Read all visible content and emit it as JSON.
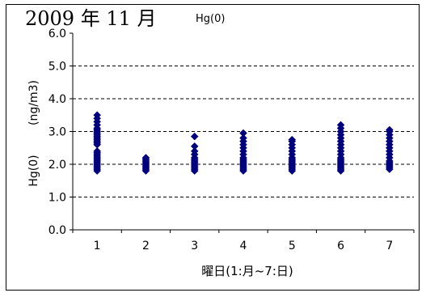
{
  "page": {
    "title": "2009 年 11 月"
  },
  "chart_data": {
    "type": "scatter",
    "series_label": "Hg(0)",
    "ylabel_main": "Hg(0)",
    "ylabel_unit": "(ng/m3)",
    "xlabel": "曜日(1:月~7:日)",
    "xlim": [
      0.5,
      7.5
    ],
    "ylim": [
      0.0,
      6.0
    ],
    "y_ticks": [
      0.0,
      1.0,
      2.0,
      3.0,
      4.0,
      5.0,
      6.0
    ],
    "y_tick_labels": [
      "0.0",
      "1.0",
      "2.0",
      "3.0",
      "4.0",
      "5.0",
      "6.0"
    ],
    "x_ticks": [
      1,
      2,
      3,
      4,
      5,
      6,
      7
    ],
    "x_tick_labels": [
      "1",
      "2",
      "3",
      "4",
      "5",
      "6",
      "7"
    ],
    "grid": "horizontal dashed",
    "marker": "diamond",
    "marker_color": "#00007f",
    "points": [
      {
        "x": 1,
        "y": [
          1.8,
          1.85,
          1.9,
          1.95,
          2.0,
          2.05,
          2.1,
          2.15,
          2.2,
          2.25,
          2.3,
          2.35,
          2.4,
          2.6,
          2.65,
          2.7,
          2.75,
          2.8,
          2.85,
          2.9,
          2.95,
          3.0,
          3.05,
          3.1,
          3.2,
          3.3,
          3.4,
          3.5
        ]
      },
      {
        "x": 2,
        "y": [
          1.8,
          1.85,
          1.9,
          1.95,
          2.0,
          2.05,
          2.1,
          2.15,
          2.2
        ]
      },
      {
        "x": 3,
        "y": [
          1.8,
          1.85,
          1.9,
          1.95,
          2.0,
          2.05,
          2.1,
          2.15,
          2.2,
          2.3,
          2.4,
          2.55,
          2.85
        ]
      },
      {
        "x": 4,
        "y": [
          1.8,
          1.85,
          1.9,
          1.95,
          2.0,
          2.05,
          2.1,
          2.15,
          2.2,
          2.3,
          2.4,
          2.5,
          2.6,
          2.7,
          2.8,
          2.95
        ]
      },
      {
        "x": 5,
        "y": [
          1.8,
          1.85,
          1.9,
          1.95,
          2.0,
          2.05,
          2.1,
          2.15,
          2.2,
          2.3,
          2.4,
          2.5,
          2.6,
          2.7,
          2.75
        ]
      },
      {
        "x": 6,
        "y": [
          1.8,
          1.85,
          1.9,
          1.95,
          2.0,
          2.05,
          2.1,
          2.15,
          2.2,
          2.3,
          2.4,
          2.5,
          2.6,
          2.7,
          2.8,
          2.9,
          3.0,
          3.1,
          3.2
        ]
      },
      {
        "x": 7,
        "y": [
          1.85,
          1.9,
          1.95,
          2.0,
          2.05,
          2.1,
          2.2,
          2.3,
          2.4,
          2.5,
          2.6,
          2.7,
          2.8,
          2.9,
          3.0,
          3.05
        ]
      }
    ]
  }
}
